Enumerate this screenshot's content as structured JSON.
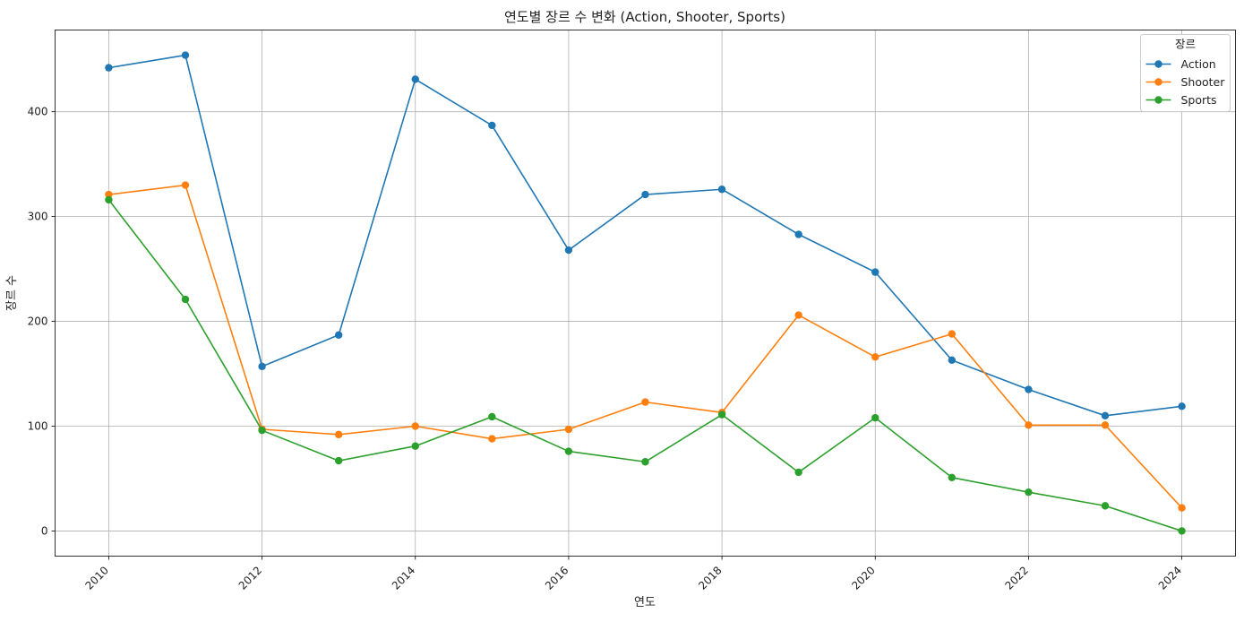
{
  "chart_data": {
    "type": "line",
    "title": "연도별 장르 수 변화 (Action, Shooter, Sports)",
    "xlabel": "연도",
    "ylabel": "장르 수",
    "x": [
      2010,
      2011,
      2012,
      2013,
      2014,
      2015,
      2016,
      2017,
      2018,
      2019,
      2020,
      2021,
      2022,
      2023,
      2024
    ],
    "x_ticks": [
      2010,
      2012,
      2014,
      2016,
      2018,
      2020,
      2022,
      2024
    ],
    "y_ticks": [
      0,
      100,
      200,
      300,
      400
    ],
    "xlim": [
      2009.3,
      2024.7
    ],
    "ylim": [
      -24,
      478
    ],
    "grid": true,
    "x_tick_rotation_deg": 45,
    "legend": {
      "title": "장르",
      "position": "top-right"
    },
    "series": [
      {
        "name": "Action",
        "color": "#1f77b4",
        "marker": "circle",
        "values": [
          442,
          454,
          157,
          187,
          431,
          387,
          268,
          321,
          326,
          283,
          247,
          163,
          135,
          110,
          119
        ]
      },
      {
        "name": "Shooter",
        "color": "#ff7f0e",
        "marker": "circle",
        "values": [
          321,
          330,
          97,
          92,
          100,
          88,
          97,
          123,
          113,
          206,
          166,
          188,
          101,
          101,
          22
        ]
      },
      {
        "name": "Sports",
        "color": "#2ca02c",
        "marker": "circle",
        "values": [
          316,
          221,
          96,
          67,
          81,
          109,
          76,
          66,
          111,
          56,
          108,
          51,
          37,
          24,
          0
        ]
      }
    ]
  }
}
